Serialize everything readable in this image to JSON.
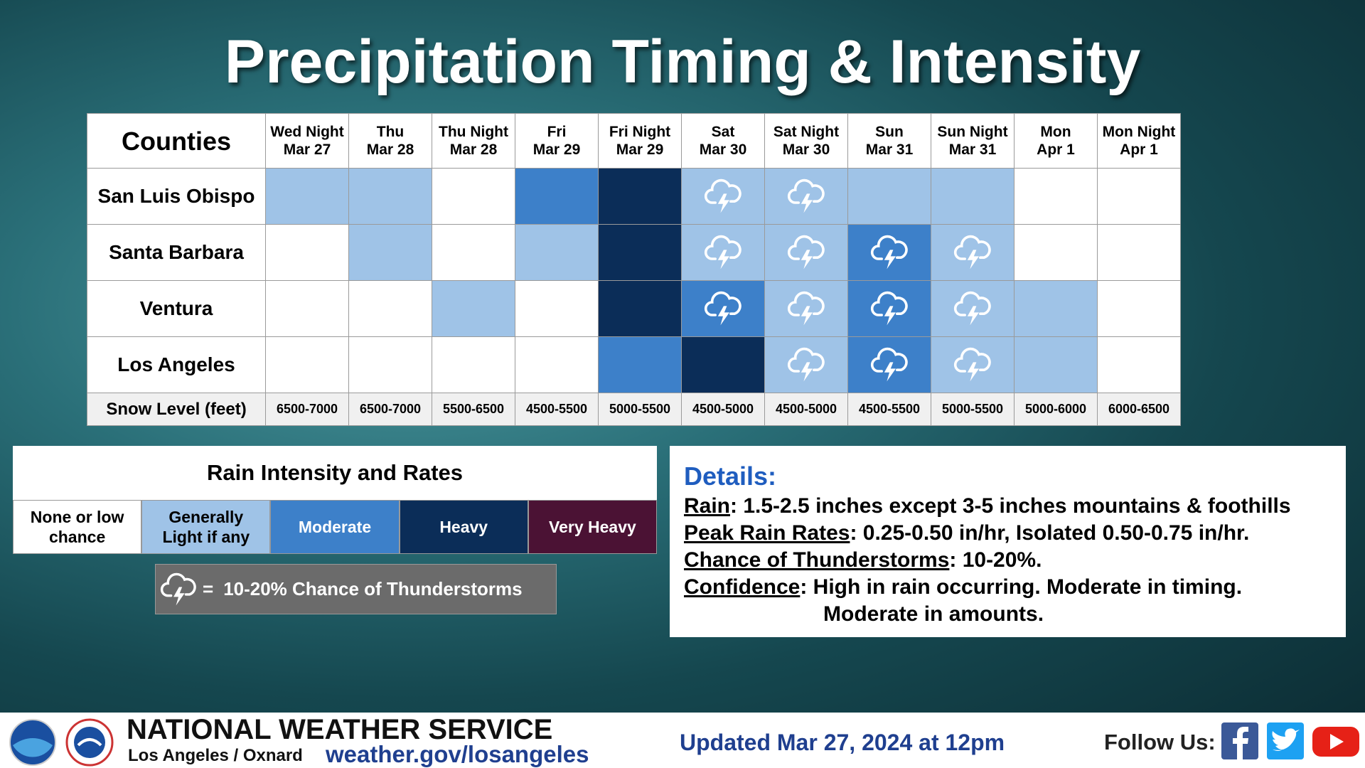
{
  "title": "Precipitation Timing & Intensity",
  "table": {
    "corner": "Counties",
    "columns": [
      {
        "day": "Wed Night",
        "date": "Mar 27"
      },
      {
        "day": "Thu",
        "date": "Mar 28"
      },
      {
        "day": "Thu Night",
        "date": "Mar 28"
      },
      {
        "day": "Fri",
        "date": "Mar 29"
      },
      {
        "day": "Fri Night",
        "date": "Mar 29"
      },
      {
        "day": "Sat",
        "date": "Mar 30"
      },
      {
        "day": "Sat Night",
        "date": "Mar 30"
      },
      {
        "day": "Sun",
        "date": "Mar 31"
      },
      {
        "day": "Sun Night",
        "date": "Mar 31"
      },
      {
        "day": "Mon",
        "date": "Apr 1"
      },
      {
        "day": "Mon Night",
        "date": "Apr 1"
      }
    ],
    "rows": [
      {
        "county": "San Luis Obispo",
        "levels": [
          1,
          1,
          0,
          2,
          3,
          1,
          1,
          1,
          1,
          0,
          0
        ],
        "tstorm": [
          false,
          false,
          false,
          false,
          false,
          true,
          true,
          false,
          false,
          false,
          false
        ]
      },
      {
        "county": "Santa Barbara",
        "levels": [
          0,
          1,
          0,
          1,
          3,
          1,
          1,
          2,
          1,
          0,
          0
        ],
        "tstorm": [
          false,
          false,
          false,
          false,
          false,
          true,
          true,
          true,
          true,
          false,
          false
        ]
      },
      {
        "county": "Ventura",
        "levels": [
          0,
          0,
          1,
          0,
          3,
          2,
          1,
          2,
          1,
          1,
          0
        ],
        "tstorm": [
          false,
          false,
          false,
          false,
          false,
          true,
          true,
          true,
          true,
          false,
          false
        ]
      },
      {
        "county": "Los Angeles",
        "levels": [
          0,
          0,
          0,
          0,
          2,
          3,
          1,
          2,
          1,
          1,
          0
        ],
        "tstorm": [
          false,
          false,
          false,
          false,
          false,
          false,
          true,
          true,
          true,
          false,
          false
        ]
      }
    ],
    "snow_label": "Snow Level (feet)",
    "snow_levels": [
      "6500-7000",
      "6500-7000",
      "5500-6500",
      "4500-5500",
      "5000-5500",
      "4500-5000",
      "4500-5000",
      "4500-5500",
      "5000-5500",
      "5000-6000",
      "6000-6500"
    ]
  },
  "legend": {
    "title": "Rain Intensity and Rates",
    "items": [
      {
        "label": "None or low chance",
        "color": "#ffffff",
        "text_color": "#000000"
      },
      {
        "label": "Generally Light if any",
        "color": "#9fc3e7",
        "text_color": "#000000"
      },
      {
        "label": "Moderate",
        "color": "#3d80c9",
        "text_color": "#ffffff"
      },
      {
        "label": "Heavy",
        "color": "#0b2d58",
        "text_color": "#ffffff"
      },
      {
        "label": "Very Heavy",
        "color": "#4b1234",
        "text_color": "#ffffff"
      }
    ],
    "tstorm_equals": "=",
    "tstorm_label": "10-20% Chance of Thunderstorms"
  },
  "details": {
    "heading": "Details:",
    "items": [
      {
        "term": "Rain",
        "text": ": 1.5-2.5 inches except 3-5 inches mountains & foothills"
      },
      {
        "term": "Peak Rain Rates",
        "text": ": 0.25-0.50 in/hr, Isolated 0.50-0.75 in/hr."
      },
      {
        "term": "Chance of Thunderstorms",
        "text": ": 10-20%."
      },
      {
        "term": "Confidence",
        "text": ": High in rain occurring. Moderate in timing.",
        "continuation": "Moderate in amounts."
      }
    ]
  },
  "footer": {
    "agency": "NATIONAL WEATHER SERVICE",
    "office": "Los Angeles / Oxnard",
    "url": "weather.gov/losangeles",
    "updated": "Updated Mar 27, 2024 at 12pm",
    "follow": "Follow Us:"
  }
}
